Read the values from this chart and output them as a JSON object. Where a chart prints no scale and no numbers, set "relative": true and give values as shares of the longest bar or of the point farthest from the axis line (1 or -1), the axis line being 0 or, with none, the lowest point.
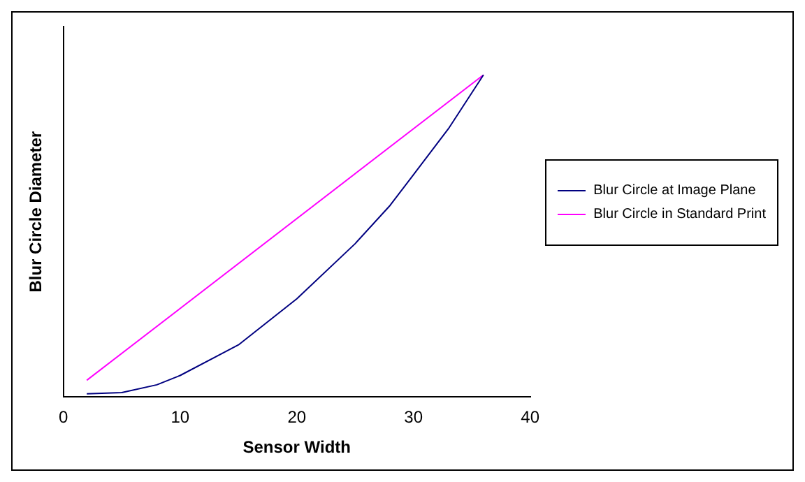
{
  "chart_data": {
    "type": "line",
    "xlabel": "Sensor Width",
    "ylabel": "Blur Circle Diameter",
    "relative": true,
    "xlim": [
      0,
      40
    ],
    "xticks": [
      0,
      10,
      20,
      30,
      40
    ],
    "grid": false,
    "legend": "right",
    "series": [
      {
        "name": "Blur Circle at Image Plane",
        "color": "#000080",
        "x": [
          2,
          5,
          8,
          10,
          15,
          20,
          25,
          28,
          30,
          33,
          36
        ],
        "values": [
          0.01,
          0.014,
          0.038,
          0.067,
          0.162,
          0.305,
          0.476,
          0.595,
          0.69,
          0.833,
          1
        ]
      },
      {
        "name": "Blur Circle in Standard Print",
        "color": "#ff00ff",
        "x": [
          2,
          36
        ],
        "values": [
          0.052,
          1
        ]
      }
    ]
  }
}
